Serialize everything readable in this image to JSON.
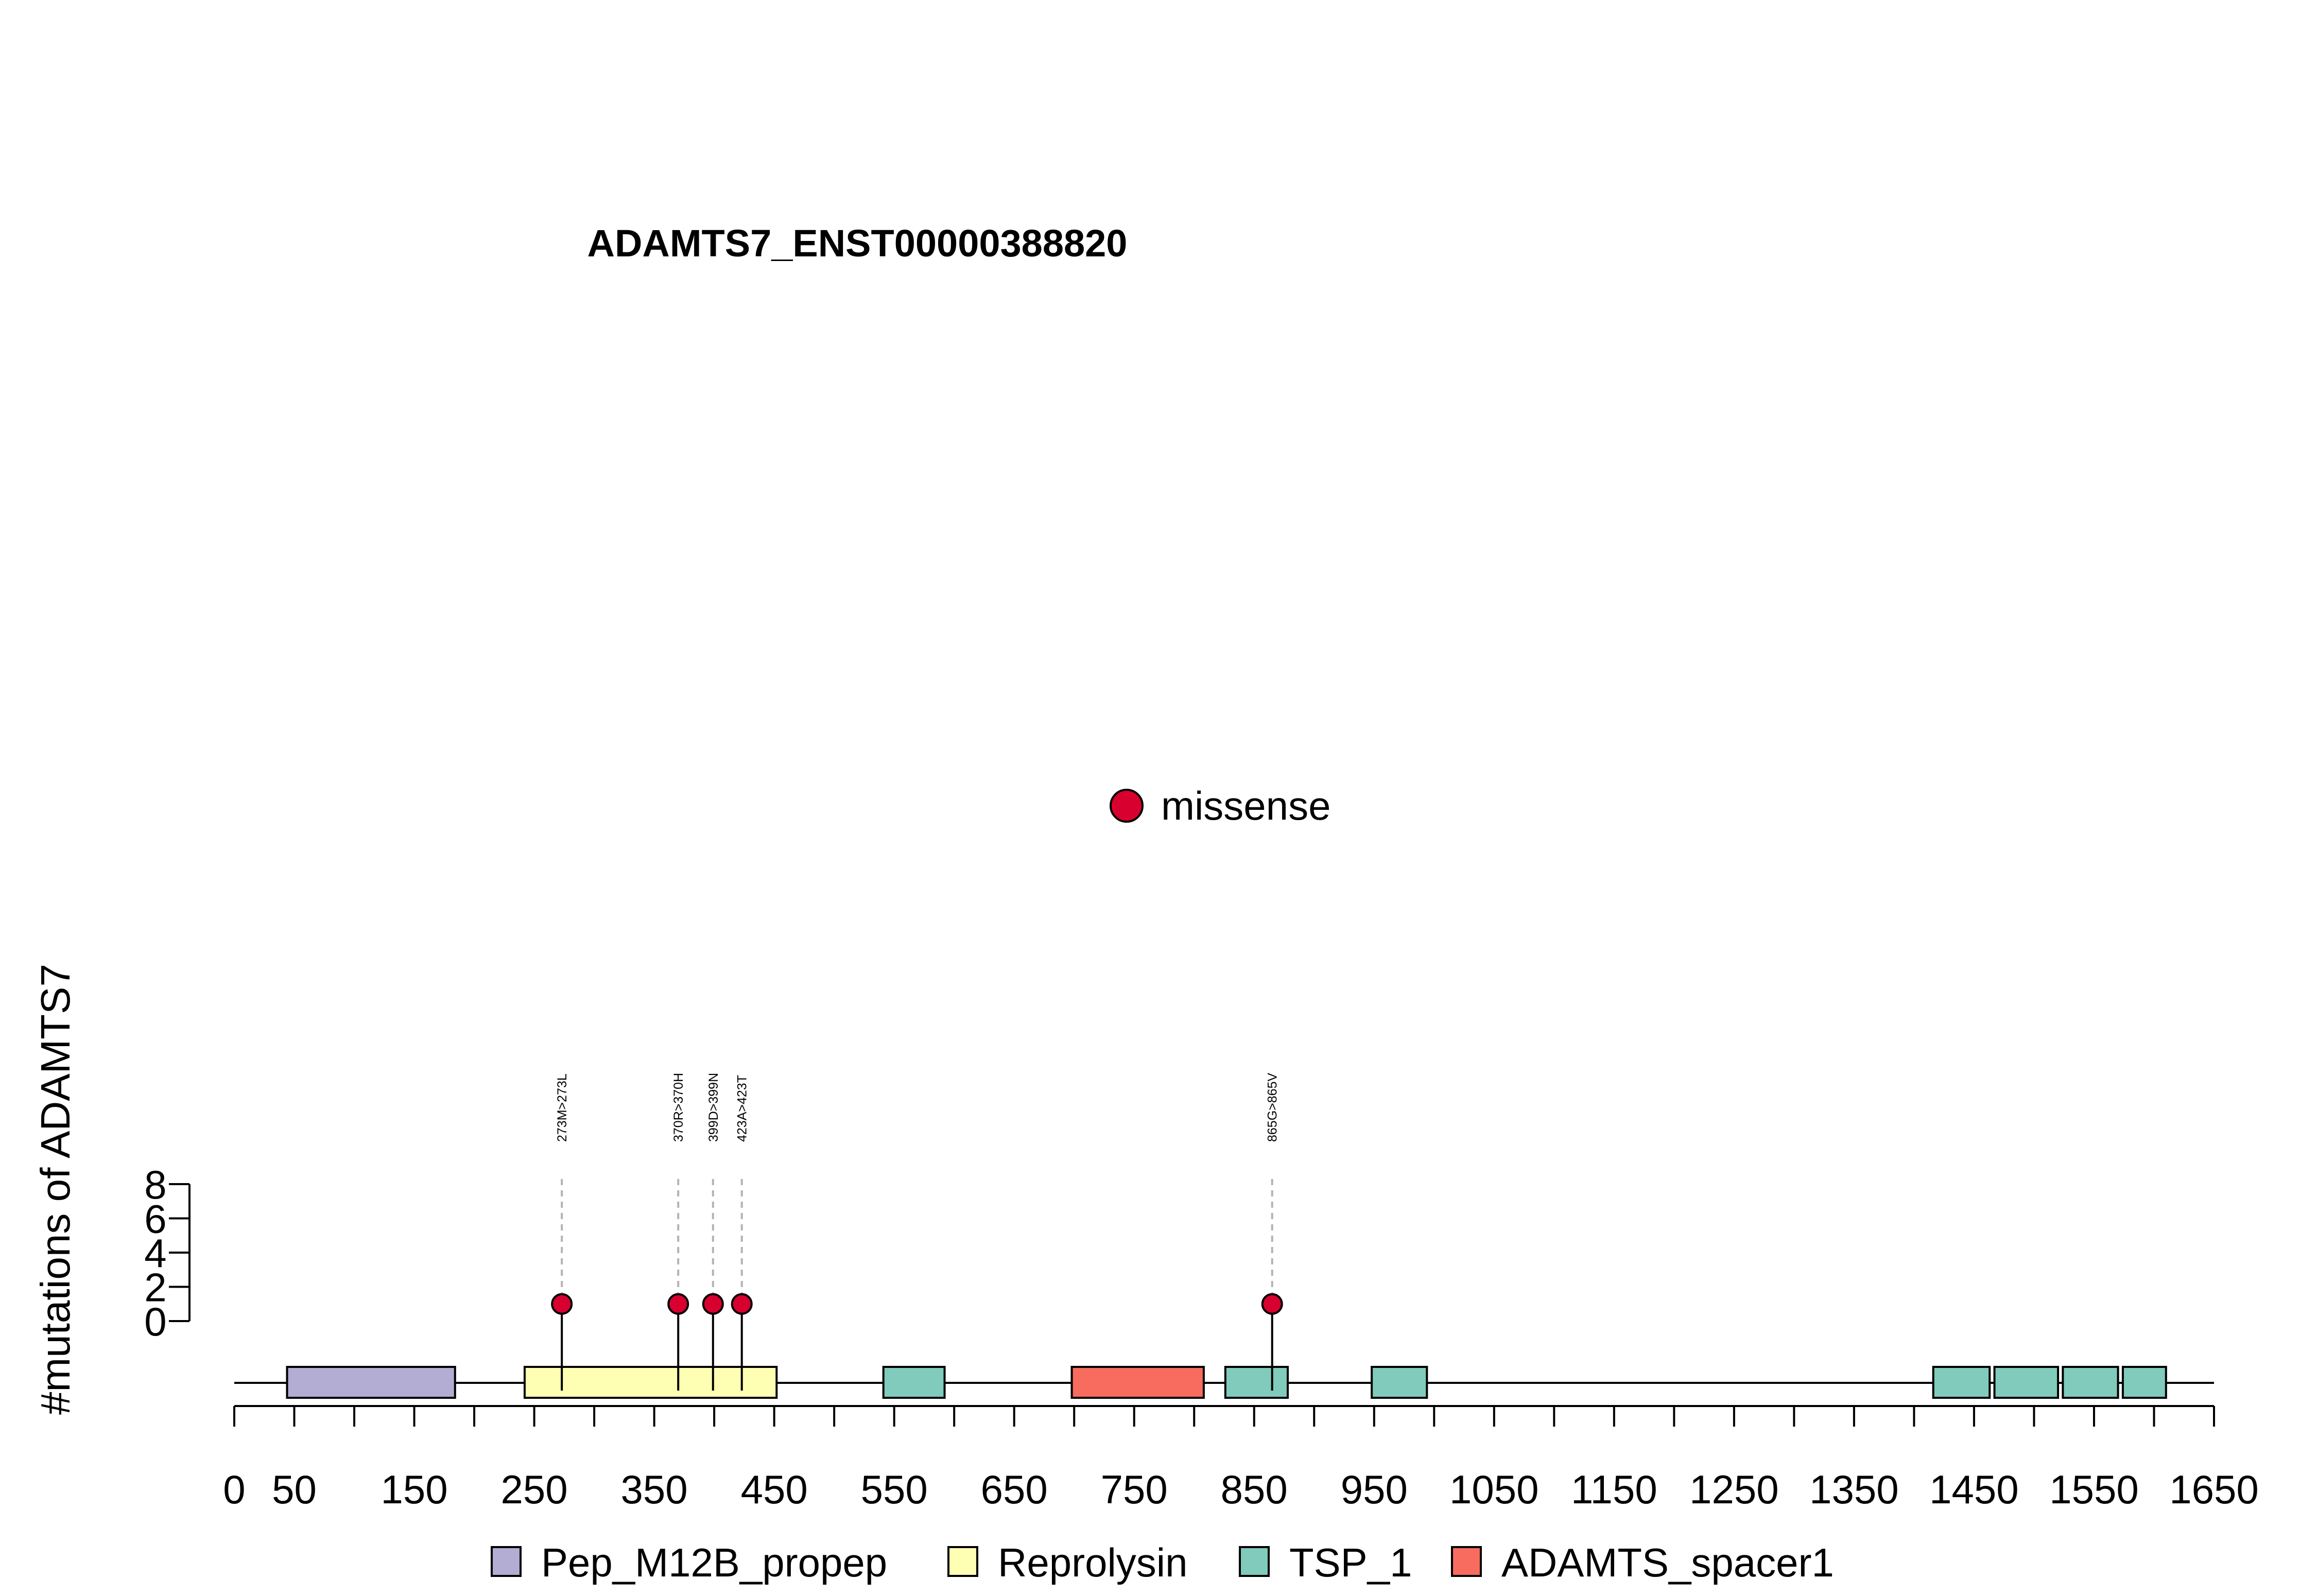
{
  "chart_data": {
    "type": "lollipop",
    "title": "ADAMTS7_ENST00000388820",
    "xlabel": "",
    "ylabel": "#mutations of ADAMTS7",
    "xlim": [
      0,
      1650
    ],
    "ylim": [
      0,
      8
    ],
    "x_ticks": [
      0,
      50,
      100,
      150,
      200,
      250,
      300,
      350,
      400,
      450,
      500,
      550,
      600,
      650,
      700,
      750,
      800,
      850,
      900,
      950,
      1000,
      1050,
      1100,
      1150,
      1200,
      1250,
      1300,
      1350,
      1400,
      1450,
      1500,
      1550,
      1600,
      1650
    ],
    "x_tick_labels": [
      "0",
      "50",
      "150",
      "250",
      "350",
      "450",
      "550",
      "650",
      "750",
      "850",
      "950",
      "1050",
      "1150",
      "1250",
      "1350",
      "1450",
      "1550",
      "1650"
    ],
    "x_tick_label_positions": [
      0,
      50,
      150,
      250,
      350,
      450,
      550,
      650,
      750,
      850,
      950,
      1050,
      1150,
      1250,
      1350,
      1450,
      1550,
      1650
    ],
    "y_ticks": [
      0,
      2,
      4,
      6,
      8
    ],
    "y_tick_labels": [
      "0",
      "2",
      "4",
      "6",
      "8"
    ],
    "mutation_legend": [
      {
        "label": "missense",
        "color": "#d7002f"
      }
    ],
    "mutations": [
      {
        "position": 273,
        "count": 1,
        "label": "273M>273L",
        "type": "missense"
      },
      {
        "position": 370,
        "count": 1,
        "label": "370R>370H",
        "type": "missense"
      },
      {
        "position": 399,
        "count": 1,
        "label": "399D>399N",
        "type": "missense"
      },
      {
        "position": 423,
        "count": 1,
        "label": "423A>423T",
        "type": "missense"
      },
      {
        "position": 865,
        "count": 1,
        "label": "865G>865V",
        "type": "missense"
      }
    ],
    "domains": [
      {
        "name": "Pep_M12B_propep",
        "start": 44,
        "end": 184,
        "color": "#b3acd3"
      },
      {
        "name": "Reprolysin",
        "start": 242,
        "end": 452,
        "color": "#ffffb4"
      },
      {
        "name": "TSP_1",
        "start": 541,
        "end": 592,
        "color": "#80cbbb"
      },
      {
        "name": "ADAMTS_spacer1",
        "start": 698,
        "end": 808,
        "color": "#f76c5e"
      },
      {
        "name": "TSP_1",
        "start": 826,
        "end": 878,
        "color": "#80cbbb"
      },
      {
        "name": "TSP_1",
        "start": 948,
        "end": 994,
        "color": "#80cbbb"
      },
      {
        "name": "TSP_1",
        "start": 1416,
        "end": 1463,
        "color": "#80cbbb"
      },
      {
        "name": "TSP_1",
        "start": 1467,
        "end": 1520,
        "color": "#80cbbb"
      },
      {
        "name": "TSP_1",
        "start": 1524,
        "end": 1570,
        "color": "#80cbbb"
      },
      {
        "name": "TSP_1",
        "start": 1574,
        "end": 1610,
        "color": "#80cbbb"
      }
    ],
    "domain_legend": [
      {
        "name": "Pep_M12B_propep",
        "color": "#b3acd3"
      },
      {
        "name": "Reprolysin",
        "color": "#ffffb4"
      },
      {
        "name": "TSP_1",
        "color": "#80cbbb"
      },
      {
        "name": "ADAMTS_spacer1",
        "color": "#f76c5e"
      }
    ]
  }
}
